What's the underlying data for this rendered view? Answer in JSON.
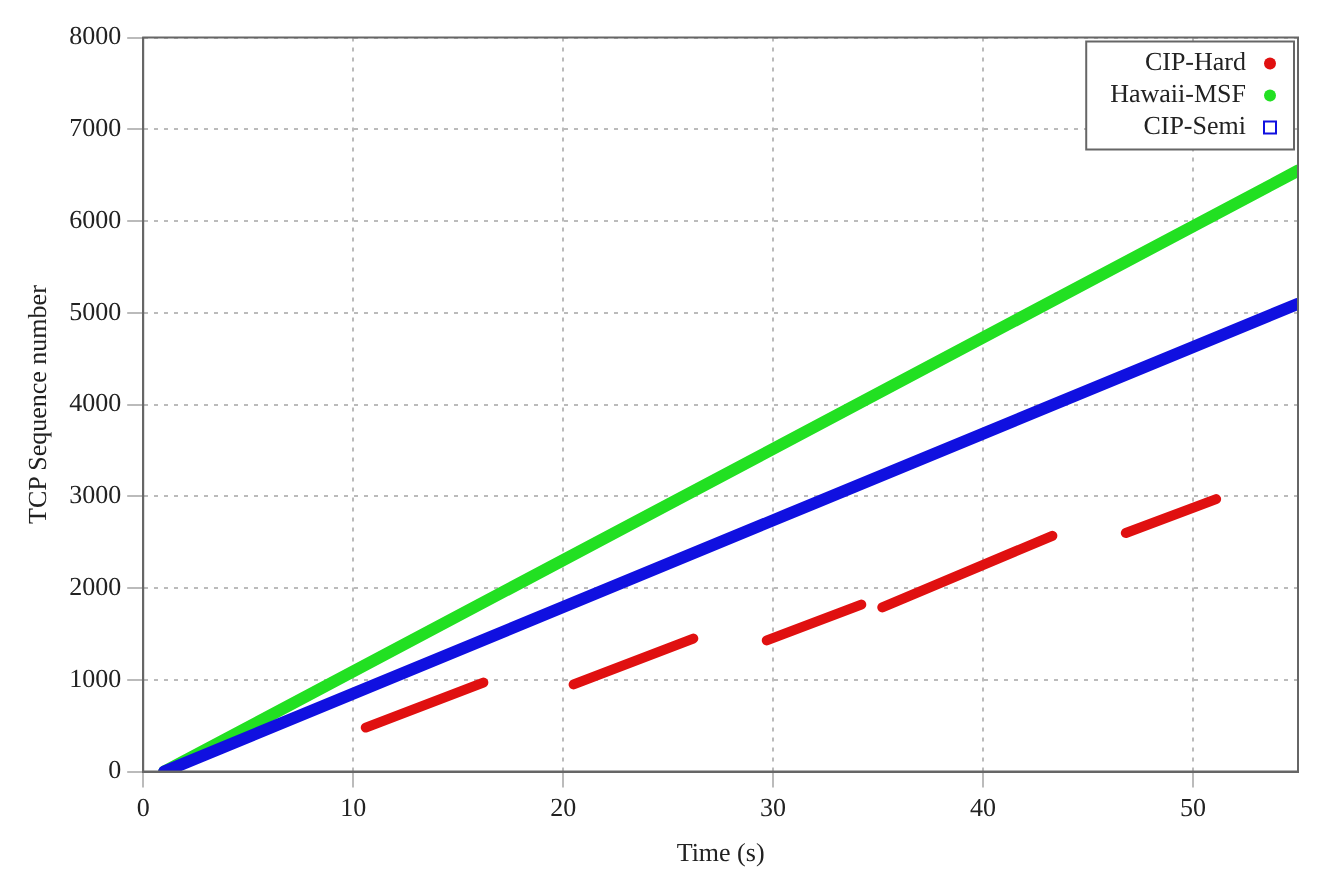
{
  "chart_data": {
    "type": "line",
    "xlabel": "Time (s)",
    "ylabel": "TCP Sequence number",
    "xlim": [
      0,
      55
    ],
    "xticks": [
      0,
      10,
      20,
      30,
      40,
      50
    ],
    "ylim": [
      0,
      8000
    ],
    "yticks": [
      0,
      1000,
      2000,
      3000,
      4000,
      5000,
      6000,
      7000,
      8000
    ],
    "grid": true,
    "legend": "top right",
    "series": [
      {
        "name": "CIP-Hard",
        "color": "#e01010",
        "x": [
          10.6,
          16.2,
          16.3,
          20.5,
          26.2,
          26.3,
          29.7,
          34.2,
          34.3,
          35.2,
          43.3,
          43.4,
          46.8,
          51.1
        ],
        "values": [
          480,
          970,
          null,
          950,
          1450,
          null,
          1430,
          1820,
          null,
          1790,
          2570,
          null,
          2600,
          2970
        ]
      },
      {
        "name": "Hawaii-MSF",
        "color": "#22e022",
        "x": [
          1,
          55
        ],
        "values": [
          0,
          6550
        ]
      },
      {
        "name": "CIP-Semi",
        "color": "#1010e0",
        "x": [
          1,
          55
        ],
        "values": [
          0,
          5100
        ]
      }
    ]
  }
}
